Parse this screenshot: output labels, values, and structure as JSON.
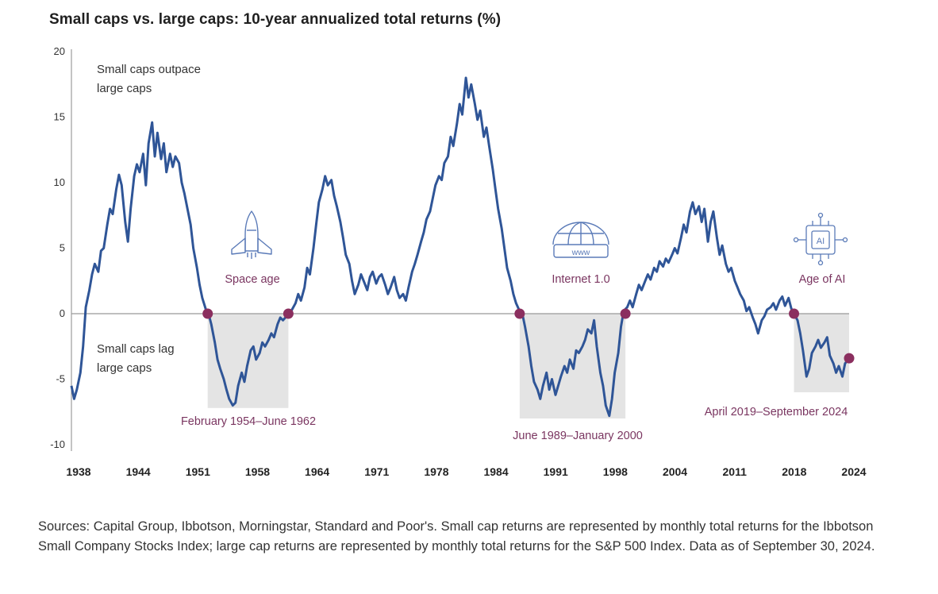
{
  "chart_data": {
    "type": "line",
    "title": "Small caps vs. large caps: 10-year annualized total returns (%)",
    "xlabel": "",
    "ylabel": "",
    "ylim": [
      -10,
      20
    ],
    "xlim": [
      1938,
      2024.75
    ],
    "y_ticks": [
      20,
      15,
      10,
      5,
      0,
      -5,
      -10
    ],
    "x_ticks": [
      "1938",
      "1944",
      "1951",
      "1958",
      "1964",
      "1971",
      "1978",
      "1984",
      "1991",
      "1998",
      "2004",
      "2011",
      "2018",
      "2024"
    ],
    "grid": false,
    "series": [
      {
        "name": "",
        "color": "#2f5597",
        "points": [
          [
            1938.0,
            -5.5
          ],
          [
            1938.3,
            -6.5
          ],
          [
            1938.6,
            -5.8
          ],
          [
            1939.0,
            -4.5
          ],
          [
            1939.3,
            -2.5
          ],
          [
            1939.6,
            0.5
          ],
          [
            1940.0,
            1.8
          ],
          [
            1940.3,
            3.0
          ],
          [
            1940.6,
            3.8
          ],
          [
            1941.0,
            3.2
          ],
          [
            1941.3,
            4.8
          ],
          [
            1941.6,
            5.0
          ],
          [
            1942.0,
            6.8
          ],
          [
            1942.3,
            8.0
          ],
          [
            1942.6,
            7.6
          ],
          [
            1943.0,
            9.5
          ],
          [
            1943.3,
            10.6
          ],
          [
            1943.6,
            9.8
          ],
          [
            1944.0,
            7.0
          ],
          [
            1944.3,
            5.5
          ],
          [
            1944.6,
            8.0
          ],
          [
            1945.0,
            10.5
          ],
          [
            1945.3,
            11.4
          ],
          [
            1945.6,
            10.8
          ],
          [
            1946.0,
            12.2
          ],
          [
            1946.3,
            9.8
          ],
          [
            1946.6,
            13.0
          ],
          [
            1947.0,
            14.6
          ],
          [
            1947.3,
            12.0
          ],
          [
            1947.6,
            13.8
          ],
          [
            1948.0,
            11.8
          ],
          [
            1948.3,
            13.0
          ],
          [
            1948.6,
            10.8
          ],
          [
            1949.0,
            12.2
          ],
          [
            1949.3,
            11.2
          ],
          [
            1949.6,
            12.0
          ],
          [
            1950.0,
            11.5
          ],
          [
            1950.3,
            10.0
          ],
          [
            1950.6,
            9.2
          ],
          [
            1951.0,
            7.8
          ],
          [
            1951.3,
            6.8
          ],
          [
            1951.6,
            5.0
          ],
          [
            1952.0,
            3.5
          ],
          [
            1952.3,
            2.2
          ],
          [
            1952.6,
            1.2
          ],
          [
            1953.0,
            0.3
          ],
          [
            1953.3,
            0.0
          ],
          [
            1953.6,
            -0.8
          ],
          [
            1954.0,
            -2.2
          ],
          [
            1954.3,
            -3.5
          ],
          [
            1954.6,
            -4.2
          ],
          [
            1955.0,
            -5.0
          ],
          [
            1955.3,
            -5.8
          ],
          [
            1955.6,
            -6.5
          ],
          [
            1956.0,
            -7.0
          ],
          [
            1956.3,
            -6.8
          ],
          [
            1956.6,
            -5.5
          ],
          [
            1957.0,
            -4.5
          ],
          [
            1957.3,
            -5.2
          ],
          [
            1957.6,
            -4.0
          ],
          [
            1958.0,
            -2.8
          ],
          [
            1958.3,
            -2.5
          ],
          [
            1958.6,
            -3.5
          ],
          [
            1959.0,
            -3.0
          ],
          [
            1959.3,
            -2.2
          ],
          [
            1959.6,
            -2.5
          ],
          [
            1960.0,
            -2.0
          ],
          [
            1960.3,
            -1.5
          ],
          [
            1960.6,
            -1.8
          ],
          [
            1961.0,
            -0.8
          ],
          [
            1961.3,
            -0.3
          ],
          [
            1961.6,
            -0.5
          ],
          [
            1962.0,
            -0.2
          ],
          [
            1962.3,
            0.0
          ],
          [
            1962.6,
            0.3
          ],
          [
            1963.0,
            0.8
          ],
          [
            1963.3,
            1.5
          ],
          [
            1963.6,
            1.0
          ],
          [
            1964.0,
            2.0
          ],
          [
            1964.3,
            3.5
          ],
          [
            1964.6,
            3.0
          ],
          [
            1965.0,
            5.0
          ],
          [
            1965.3,
            6.8
          ],
          [
            1965.6,
            8.5
          ],
          [
            1966.0,
            9.5
          ],
          [
            1966.3,
            10.5
          ],
          [
            1966.6,
            9.8
          ],
          [
            1967.0,
            10.2
          ],
          [
            1967.3,
            9.0
          ],
          [
            1967.6,
            8.2
          ],
          [
            1968.0,
            7.0
          ],
          [
            1968.3,
            5.8
          ],
          [
            1968.6,
            4.5
          ],
          [
            1969.0,
            3.8
          ],
          [
            1969.3,
            2.5
          ],
          [
            1969.6,
            1.5
          ],
          [
            1970.0,
            2.2
          ],
          [
            1970.3,
            3.0
          ],
          [
            1970.6,
            2.5
          ],
          [
            1971.0,
            1.8
          ],
          [
            1971.3,
            2.8
          ],
          [
            1971.6,
            3.2
          ],
          [
            1972.0,
            2.3
          ],
          [
            1972.3,
            2.8
          ],
          [
            1972.6,
            3.0
          ],
          [
            1973.0,
            2.2
          ],
          [
            1973.3,
            1.5
          ],
          [
            1973.6,
            2.0
          ],
          [
            1974.0,
            2.8
          ],
          [
            1974.3,
            1.8
          ],
          [
            1974.6,
            1.2
          ],
          [
            1975.0,
            1.5
          ],
          [
            1975.3,
            1.0
          ],
          [
            1975.6,
            2.0
          ],
          [
            1976.0,
            3.2
          ],
          [
            1976.3,
            3.8
          ],
          [
            1976.6,
            4.5
          ],
          [
            1977.0,
            5.5
          ],
          [
            1977.3,
            6.2
          ],
          [
            1977.6,
            7.2
          ],
          [
            1978.0,
            7.8
          ],
          [
            1978.3,
            8.8
          ],
          [
            1978.6,
            9.8
          ],
          [
            1979.0,
            10.5
          ],
          [
            1979.3,
            10.2
          ],
          [
            1979.6,
            11.5
          ],
          [
            1980.0,
            12.0
          ],
          [
            1980.3,
            13.5
          ],
          [
            1980.6,
            12.8
          ],
          [
            1981.0,
            14.5
          ],
          [
            1981.3,
            16.0
          ],
          [
            1981.6,
            15.2
          ],
          [
            1982.0,
            18.0
          ],
          [
            1982.3,
            16.5
          ],
          [
            1982.6,
            17.5
          ],
          [
            1983.0,
            16.0
          ],
          [
            1983.3,
            14.8
          ],
          [
            1983.6,
            15.5
          ],
          [
            1984.0,
            13.5
          ],
          [
            1984.3,
            14.2
          ],
          [
            1984.6,
            12.8
          ],
          [
            1985.0,
            11.0
          ],
          [
            1985.3,
            9.5
          ],
          [
            1985.6,
            8.0
          ],
          [
            1986.0,
            6.5
          ],
          [
            1986.3,
            5.0
          ],
          [
            1986.6,
            3.5
          ],
          [
            1987.0,
            2.5
          ],
          [
            1987.3,
            1.5
          ],
          [
            1987.6,
            0.8
          ],
          [
            1988.0,
            0.2
          ],
          [
            1988.3,
            0.0
          ],
          [
            1988.6,
            -1.0
          ],
          [
            1989.0,
            -2.5
          ],
          [
            1989.3,
            -4.0
          ],
          [
            1989.6,
            -5.2
          ],
          [
            1990.0,
            -5.8
          ],
          [
            1990.3,
            -6.5
          ],
          [
            1990.6,
            -5.5
          ],
          [
            1991.0,
            -4.5
          ],
          [
            1991.3,
            -5.8
          ],
          [
            1991.6,
            -5.0
          ],
          [
            1992.0,
            -6.2
          ],
          [
            1992.3,
            -5.5
          ],
          [
            1992.6,
            -4.8
          ],
          [
            1993.0,
            -4.0
          ],
          [
            1993.3,
            -4.5
          ],
          [
            1993.6,
            -3.5
          ],
          [
            1994.0,
            -4.2
          ],
          [
            1994.3,
            -2.8
          ],
          [
            1994.6,
            -3.0
          ],
          [
            1995.0,
            -2.5
          ],
          [
            1995.3,
            -2.0
          ],
          [
            1995.6,
            -1.2
          ],
          [
            1996.0,
            -1.5
          ],
          [
            1996.3,
            -0.5
          ],
          [
            1996.6,
            -2.5
          ],
          [
            1997.0,
            -4.5
          ],
          [
            1997.3,
            -5.5
          ],
          [
            1997.6,
            -7.0
          ],
          [
            1998.0,
            -7.8
          ],
          [
            1998.3,
            -6.5
          ],
          [
            1998.6,
            -4.5
          ],
          [
            1999.0,
            -3.0
          ],
          [
            1999.3,
            -1.0
          ],
          [
            1999.6,
            0.2
          ],
          [
            2000.0,
            0.5
          ],
          [
            2000.3,
            1.0
          ],
          [
            2000.6,
            0.5
          ],
          [
            2001.0,
            1.5
          ],
          [
            2001.3,
            2.2
          ],
          [
            2001.6,
            1.8
          ],
          [
            2002.0,
            2.5
          ],
          [
            2002.3,
            3.0
          ],
          [
            2002.6,
            2.6
          ],
          [
            2003.0,
            3.5
          ],
          [
            2003.3,
            3.2
          ],
          [
            2003.6,
            4.0
          ],
          [
            2004.0,
            3.6
          ],
          [
            2004.3,
            4.2
          ],
          [
            2004.6,
            3.9
          ],
          [
            2005.0,
            4.5
          ],
          [
            2005.3,
            5.0
          ],
          [
            2005.6,
            4.6
          ],
          [
            2006.0,
            5.8
          ],
          [
            2006.3,
            6.8
          ],
          [
            2006.6,
            6.2
          ],
          [
            2007.0,
            7.8
          ],
          [
            2007.3,
            8.5
          ],
          [
            2007.6,
            7.6
          ],
          [
            2008.0,
            8.2
          ],
          [
            2008.3,
            7.0
          ],
          [
            2008.6,
            8.0
          ],
          [
            2009.0,
            5.5
          ],
          [
            2009.3,
            7.0
          ],
          [
            2009.6,
            7.8
          ],
          [
            2010.0,
            5.8
          ],
          [
            2010.3,
            4.5
          ],
          [
            2010.6,
            5.2
          ],
          [
            2011.0,
            3.8
          ],
          [
            2011.3,
            3.2
          ],
          [
            2011.6,
            3.5
          ],
          [
            2012.0,
            2.5
          ],
          [
            2012.3,
            2.0
          ],
          [
            2012.6,
            1.5
          ],
          [
            2013.0,
            1.0
          ],
          [
            2013.3,
            0.2
          ],
          [
            2013.6,
            0.5
          ],
          [
            2014.0,
            -0.3
          ],
          [
            2014.3,
            -0.8
          ],
          [
            2014.6,
            -1.5
          ],
          [
            2015.0,
            -0.5
          ],
          [
            2015.3,
            -0.2
          ],
          [
            2015.6,
            0.3
          ],
          [
            2016.0,
            0.5
          ],
          [
            2016.3,
            0.8
          ],
          [
            2016.6,
            0.3
          ],
          [
            2017.0,
            1.0
          ],
          [
            2017.3,
            1.3
          ],
          [
            2017.6,
            0.6
          ],
          [
            2018.0,
            1.2
          ],
          [
            2018.3,
            0.4
          ],
          [
            2018.6,
            0.0
          ],
          [
            2019.0,
            -0.5
          ],
          [
            2019.3,
            -1.5
          ],
          [
            2019.6,
            -2.8
          ],
          [
            2020.0,
            -4.8
          ],
          [
            2020.3,
            -4.2
          ],
          [
            2020.6,
            -3.0
          ],
          [
            2021.0,
            -2.5
          ],
          [
            2021.3,
            -2.0
          ],
          [
            2021.6,
            -2.6
          ],
          [
            2022.0,
            -2.2
          ],
          [
            2022.3,
            -1.8
          ],
          [
            2022.6,
            -3.2
          ],
          [
            2023.0,
            -3.8
          ],
          [
            2023.3,
            -4.5
          ],
          [
            2023.6,
            -4.0
          ],
          [
            2024.0,
            -4.8
          ],
          [
            2024.3,
            -3.8
          ],
          [
            2024.75,
            -3.4
          ]
        ]
      }
    ],
    "shaded_periods": [
      {
        "label": "February 1954–June 1962",
        "start": 1953.2,
        "end": 1962.2,
        "ymin": -7.2,
        "ymax": 0
      },
      {
        "label": "June 1989–January 2000",
        "start": 1988.0,
        "end": 1999.8,
        "ymin": -8.0,
        "ymax": 0
      },
      {
        "label": "April 2019–September 2024",
        "start": 2018.6,
        "end": 2024.75,
        "ymin": -6.0,
        "ymax": 0
      }
    ],
    "markers": [
      {
        "x": 1953.2,
        "y": 0,
        "color": "#8b2f5f"
      },
      {
        "x": 1962.2,
        "y": 0,
        "color": "#8b2f5f"
      },
      {
        "x": 1988.0,
        "y": 0,
        "color": "#8b2f5f"
      },
      {
        "x": 1999.8,
        "y": 0,
        "color": "#8b2f5f"
      },
      {
        "x": 2018.6,
        "y": 0,
        "color": "#8b2f5f"
      },
      {
        "x": 2024.75,
        "y": -3.4,
        "color": "#8b2f5f"
      }
    ],
    "annotations": {
      "top_note": [
        "Small caps outpace",
        "large caps"
      ],
      "bottom_note": [
        "Small caps lag",
        "large caps"
      ],
      "events": [
        {
          "label": "Space age",
          "icon": "space-shuttle-icon"
        },
        {
          "label": "Internet 1.0",
          "icon": "www-globe-icon"
        },
        {
          "label": "Age of AI",
          "icon": "ai-chip-icon"
        }
      ]
    }
  },
  "source_note": "Sources: Capital Group, Ibbotson, Morningstar, Standard and Poor's. Small cap returns are represented by monthly total returns for the Ibbotson Small Company Stocks Index; large cap returns are represented by monthly total returns for the S&P 500 Index. Data as of September 30, 2024."
}
